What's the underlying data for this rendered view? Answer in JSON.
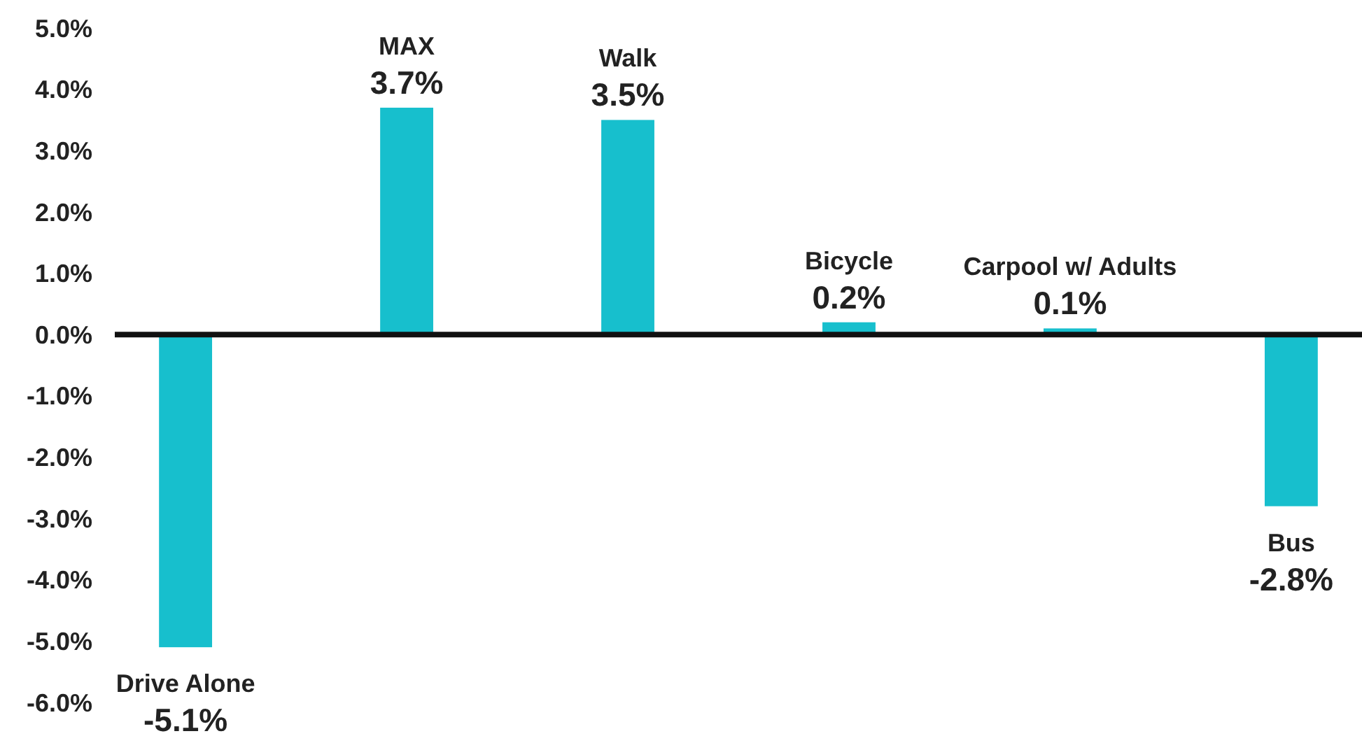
{
  "chart_data": {
    "type": "bar",
    "categories": [
      "Drive Alone",
      "MAX",
      "Walk",
      "Bicycle",
      "Carpool w/ Adults",
      "Bus"
    ],
    "values": [
      -5.1,
      3.7,
      3.5,
      0.2,
      0.1,
      -2.8
    ],
    "value_labels": [
      "-5.1%",
      "3.7%",
      "3.5%",
      "0.2%",
      "0.1%",
      "-2.8%"
    ],
    "color": "#17bfcd",
    "ylim": [
      -6,
      5
    ],
    "yticks": [
      {
        "value": 5,
        "label": "5.0%"
      },
      {
        "value": 4,
        "label": "4.0%"
      },
      {
        "value": 3,
        "label": "3.0%"
      },
      {
        "value": 2,
        "label": "2.0%"
      },
      {
        "value": 1,
        "label": "1.0%"
      },
      {
        "value": 0,
        "label": "0.0%"
      },
      {
        "value": -1,
        "label": "-1.0%"
      },
      {
        "value": -2,
        "label": "-2.0%"
      },
      {
        "value": -3,
        "label": "-3.0%"
      },
      {
        "value": -4,
        "label": "-4.0%"
      },
      {
        "value": -5,
        "label": "-5.0%"
      },
      {
        "value": -6,
        "label": "-6.0%"
      }
    ],
    "grid": false
  }
}
